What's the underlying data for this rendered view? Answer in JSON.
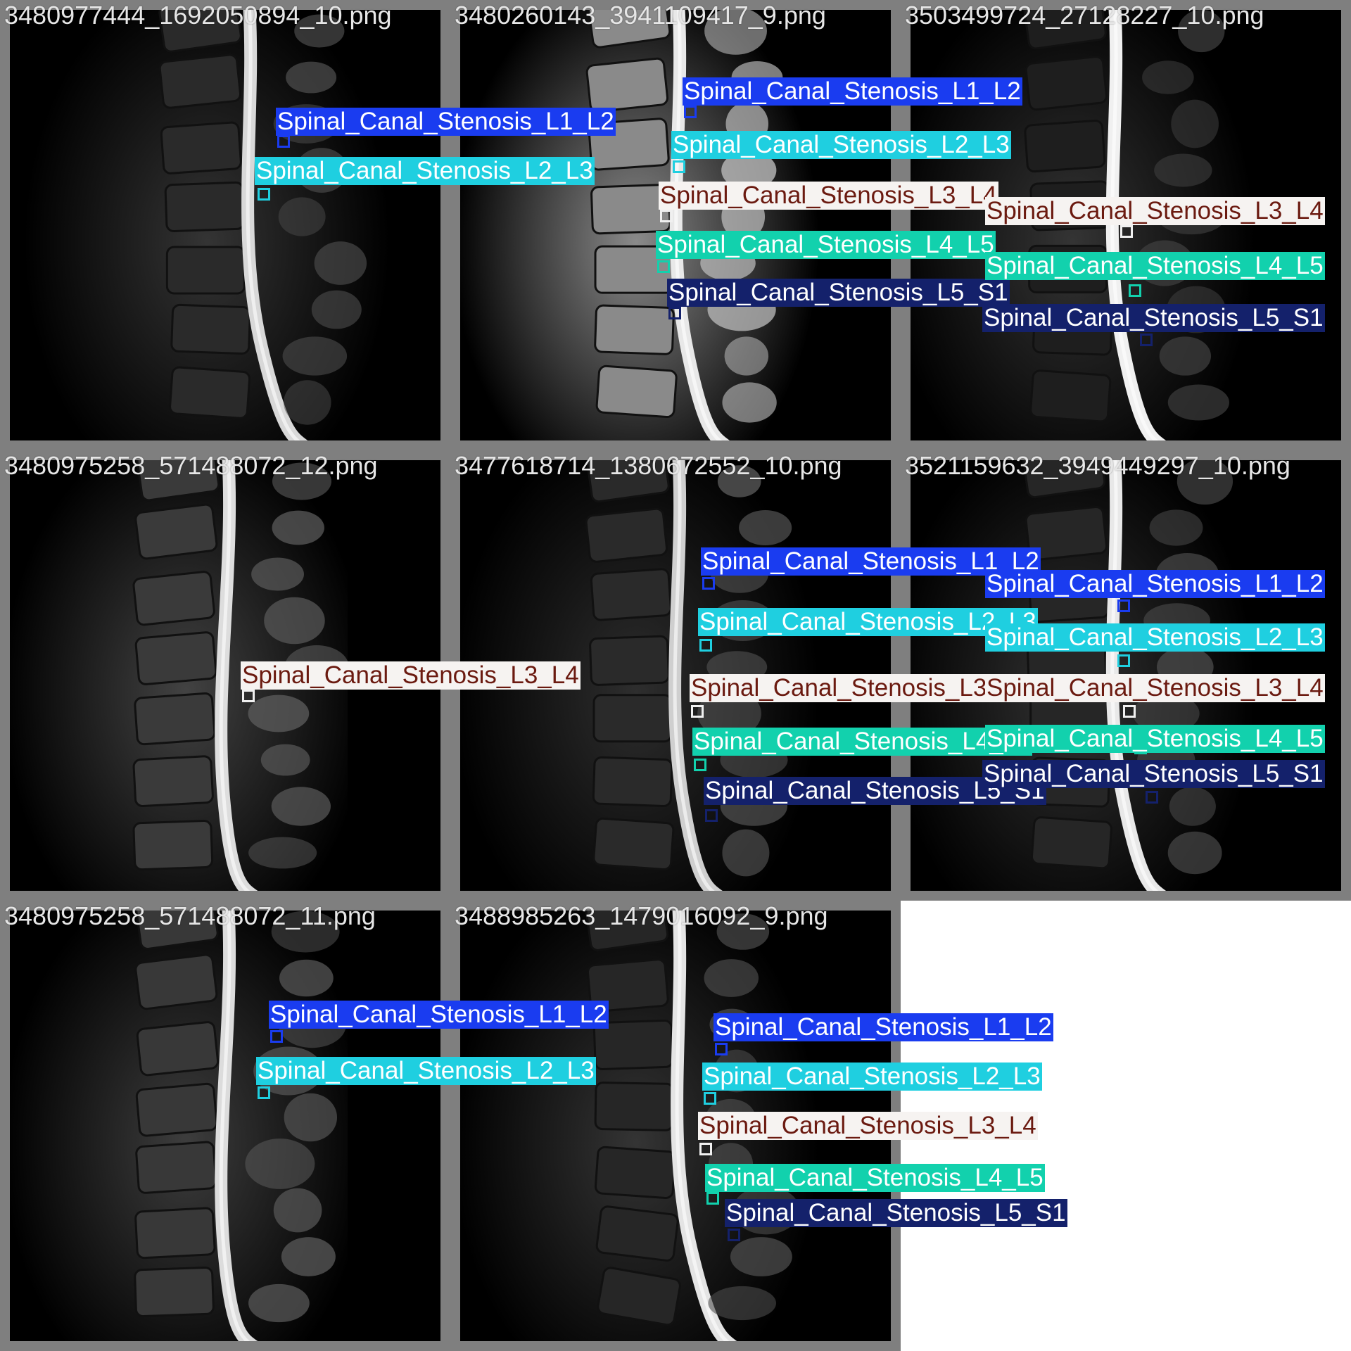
{
  "tiles": [
    {
      "filename": "3480977444_1692050894_10.png"
    },
    {
      "filename": "3480260143_3941109417_9.png"
    },
    {
      "filename": "3503499724_27128227_10.png"
    },
    {
      "filename": "3480975258_571488072_12.png"
    },
    {
      "filename": "3477618714_1380672552_10.png"
    },
    {
      "filename": "3521159632_3949449297_10.png"
    },
    {
      "filename": "3480975258_571488072_11.png"
    },
    {
      "filename": "3488985263_1479016092_9.png"
    }
  ],
  "classes": {
    "L1_L2": {
      "label": "Spinal_Canal_Stenosis_L1_L2",
      "bg": "#1a3cf0",
      "fg": "#ffffff",
      "box": "#1a3cf0"
    },
    "L2_L3": {
      "label": "Spinal_Canal_Stenosis_L2_L3",
      "bg": "#1fcfe0",
      "fg": "#ffffff",
      "box": "#1fcfe0"
    },
    "L3_L4": {
      "label": "Spinal_Canal_Stenosis_L3_L4",
      "bg": "#f6f3f1",
      "fg": "#6b1a10",
      "box": "#f0f0f0"
    },
    "L4_L5": {
      "label": "Spinal_Canal_Stenosis_L4_L5",
      "bg": "#12d1ad",
      "fg": "#ffffff",
      "box": "#12d1ad"
    },
    "L5_S1": {
      "label": "Spinal_Canal_Stenosis_L5_S1",
      "bg": "#14216b",
      "fg": "#ffffff",
      "box": "#14216b"
    }
  },
  "detections": [
    {
      "tile": 0,
      "cls": "L1_L2"
    },
    {
      "tile": 0,
      "cls": "L2_L3"
    },
    {
      "tile": 1,
      "cls": "L1_L2"
    },
    {
      "tile": 1,
      "cls": "L2_L3"
    },
    {
      "tile": 1,
      "cls": "L3_L4"
    },
    {
      "tile": 1,
      "cls": "L4_L5"
    },
    {
      "tile": 1,
      "cls": "L5_S1"
    },
    {
      "tile": 2,
      "cls": "L3_L4"
    },
    {
      "tile": 2,
      "cls": "L4_L5"
    },
    {
      "tile": 2,
      "cls": "L5_S1"
    },
    {
      "tile": 3,
      "cls": "L3_L4"
    },
    {
      "tile": 4,
      "cls": "L1_L2"
    },
    {
      "tile": 4,
      "cls": "L2_L3"
    },
    {
      "tile": 4,
      "cls": "L3_L4"
    },
    {
      "tile": 4,
      "cls": "L4_L5"
    },
    {
      "tile": 4,
      "cls": "L5_S1"
    },
    {
      "tile": 5,
      "cls": "L1_L2"
    },
    {
      "tile": 5,
      "cls": "L2_L3"
    },
    {
      "tile": 5,
      "cls": "L3_L4"
    },
    {
      "tile": 5,
      "cls": "L4_L5"
    },
    {
      "tile": 5,
      "cls": "L5_S1"
    },
    {
      "tile": 6,
      "cls": "L1_L2"
    },
    {
      "tile": 6,
      "cls": "L2_L3"
    },
    {
      "tile": 7,
      "cls": "L1_L2"
    },
    {
      "tile": 7,
      "cls": "L2_L3"
    },
    {
      "tile": 7,
      "cls": "L3_L4"
    },
    {
      "tile": 7,
      "cls": "L4_L5"
    },
    {
      "tile": 7,
      "cls": "L5_S1"
    }
  ]
}
